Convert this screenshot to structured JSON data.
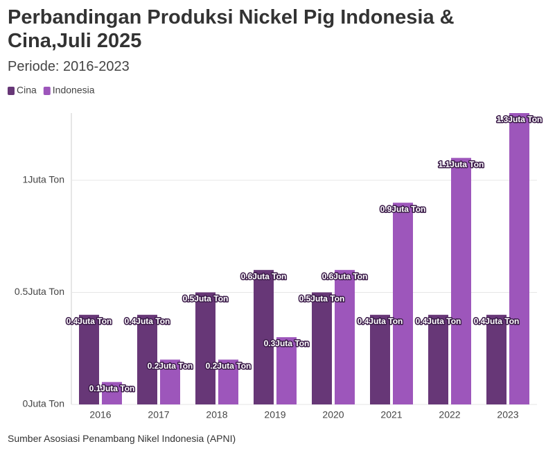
{
  "chart_data": {
    "type": "bar",
    "title": "Perbandingan Produksi Nickel Pig Indonesia & Cina,Juli 2025",
    "subtitle": "Periode: 2016-2023",
    "source": "Sumber Asosiasi Penambang Nikel Indonesia (APNI)",
    "categories": [
      "2016",
      "2017",
      "2018",
      "2019",
      "2020",
      "2021",
      "2022",
      "2023"
    ],
    "series": [
      {
        "name": "Cina",
        "color": "#673777",
        "values": [
          0.4,
          0.4,
          0.5,
          0.6,
          0.5,
          0.4,
          0.4,
          0.4
        ],
        "value_labels": [
          "0.4Juta Ton",
          "0.4Juta Ton",
          "0.5Juta Ton",
          "0.6Juta Ton",
          "0.5Juta Ton",
          "0.4Juta Ton",
          "0.4Juta Ton",
          "0.4Juta Ton"
        ]
      },
      {
        "name": "Indonesia",
        "color": "#9d56bb",
        "values": [
          0.1,
          0.2,
          0.2,
          0.3,
          0.6,
          0.9,
          1.1,
          1.3
        ],
        "value_labels": [
          "0.1Juta Ton",
          "0.2Juta Ton",
          "0.2Juta Ton",
          "0.3Juta Ton",
          "0.6Juta Ton",
          "0.9Juta Ton",
          "1.1Juta Ton",
          "1.3Juta Ton"
        ]
      }
    ],
    "ylim": [
      0,
      1.3
    ],
    "yticks": [
      {
        "value": 0,
        "label": "0Juta Ton"
      },
      {
        "value": 0.5,
        "label": "0.5Juta Ton"
      },
      {
        "value": 1,
        "label": "1Juta Ton"
      }
    ],
    "grid": true
  }
}
